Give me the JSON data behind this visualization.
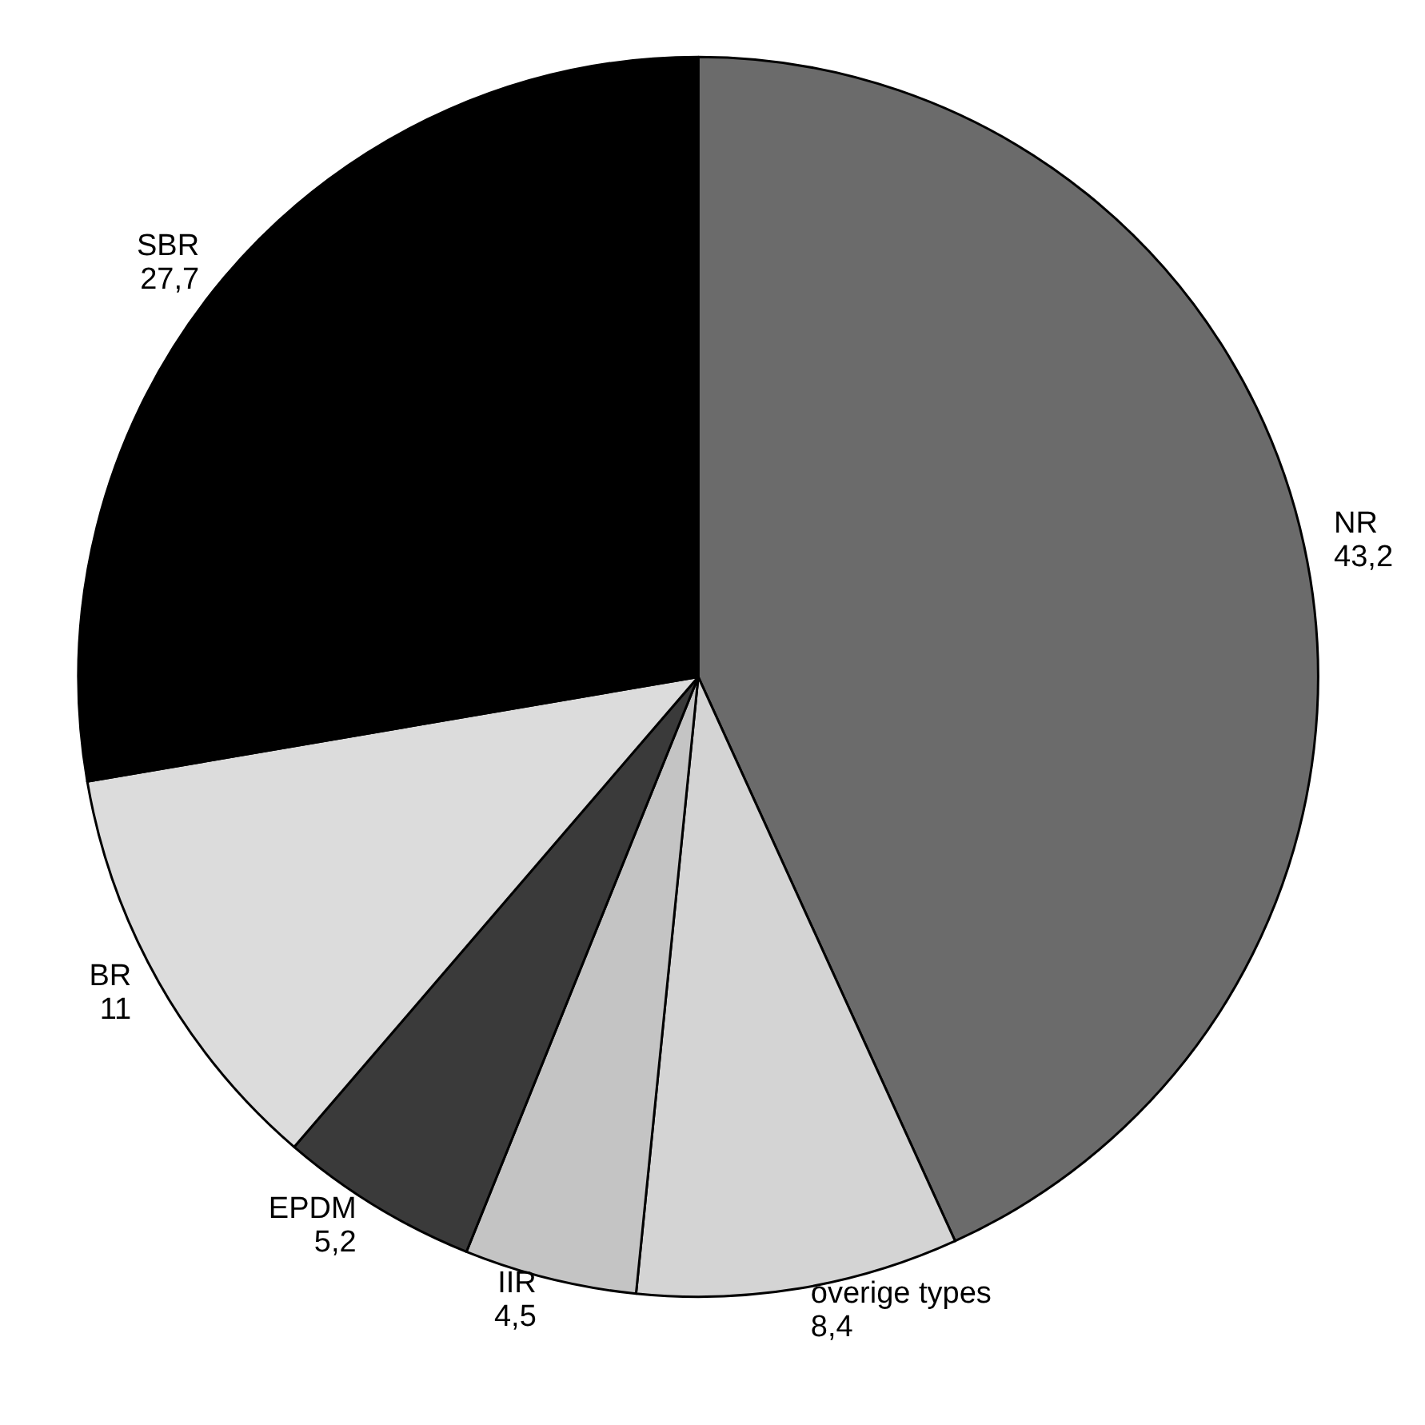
{
  "chart_data": {
    "type": "pie",
    "categories": [
      "NR",
      "overige types",
      "IIR",
      "EPDM",
      "BR",
      "SBR"
    ],
    "values": [
      43.2,
      8.4,
      4.5,
      5.2,
      11,
      27.7
    ],
    "value_labels": [
      "43,2",
      "8,4",
      "4,5",
      "5,2",
      "11",
      "27,7"
    ],
    "colors": [
      "#6b6b6b",
      "#d4d4d4",
      "#c4c4c4",
      "#3a3a3a",
      "#dcdcdc",
      "#000000"
    ]
  }
}
